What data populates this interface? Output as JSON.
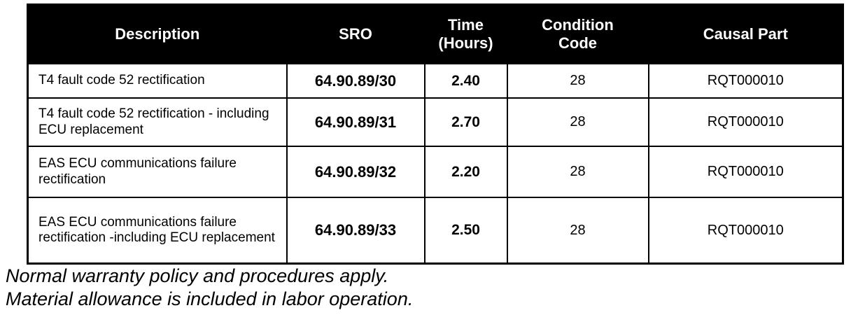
{
  "table": {
    "columns": [
      "Description",
      "SRO",
      "Time\n(Hours)",
      "Condition\nCode",
      "Causal Part"
    ],
    "rows": [
      {
        "description": "T4 fault code 52 rectification",
        "sro": "64.90.89/30",
        "time": "2.40",
        "condition_code": "28",
        "causal_part": "RQT000010"
      },
      {
        "description": "T4 fault code 52 rectification - including ECU replacement",
        "sro": "64.90.89/31",
        "time": "2.70",
        "condition_code": "28",
        "causal_part": "RQT000010"
      },
      {
        "description": "EAS ECU communications failure rectification",
        "sro": "64.90.89/32",
        "time": "2.20",
        "condition_code": "28",
        "causal_part": "RQT000010"
      },
      {
        "description": "EAS ECU communications failure rectification -including ECU replacement",
        "sro": "64.90.89/33",
        "time": "2.50",
        "condition_code": "28",
        "causal_part": "RQT000010"
      }
    ]
  },
  "footer": {
    "lines": [
      "Normal warranty policy and procedures apply.",
      "Material allowance is included in labor operation."
    ]
  },
  "colors": {
    "header_bg": "#000000",
    "header_text": "#ffffff",
    "body_text": "#000000",
    "border": "#000000",
    "page_bg": "#ffffff"
  }
}
